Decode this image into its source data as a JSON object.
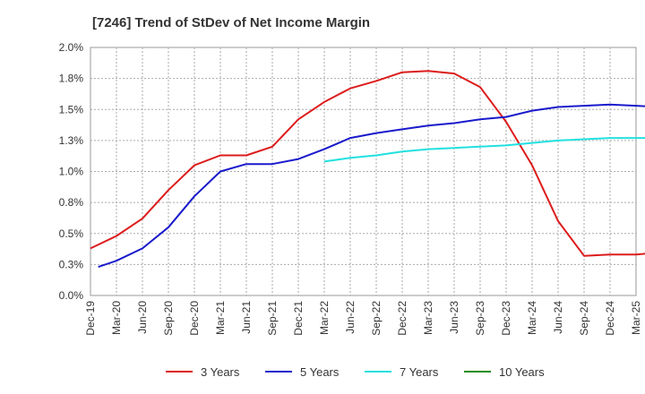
{
  "chart_data": {
    "type": "line",
    "title": "[7246]  Trend of StDev of Net Income Margin",
    "xlabel": "",
    "ylabel": "",
    "ylim": [
      0,
      2.0
    ],
    "yticks": [
      "0.0%",
      "0.3%",
      "0.5%",
      "0.8%",
      "1.0%",
      "1.3%",
      "1.5%",
      "1.8%",
      "2.0%"
    ],
    "xticks": [
      "Dec-19",
      "Mar-20",
      "Jun-20",
      "Sep-20",
      "Dec-20",
      "Mar-21",
      "Jun-21",
      "Sep-21",
      "Dec-21",
      "Mar-22",
      "Jun-22",
      "Sep-22",
      "Dec-22",
      "Mar-23",
      "Jun-23",
      "Sep-23",
      "Dec-23",
      "Mar-24",
      "Jun-24",
      "Sep-24",
      "Dec-24",
      "Mar-25"
    ],
    "grid": true,
    "legend_position": "bottom",
    "series": [
      {
        "name": "3 Years",
        "color": "#dd1c1c",
        "points": [
          [
            0,
            0.38
          ],
          [
            1,
            0.48
          ],
          [
            2,
            0.62
          ],
          [
            3,
            0.85
          ],
          [
            4,
            1.05
          ],
          [
            5,
            1.13
          ],
          [
            6,
            1.13
          ],
          [
            7,
            1.2
          ],
          [
            8,
            1.42
          ],
          [
            9,
            1.56
          ],
          [
            10,
            1.67
          ],
          [
            11,
            1.73
          ],
          [
            12,
            1.8
          ],
          [
            13,
            1.81
          ],
          [
            14,
            1.79
          ],
          [
            15,
            1.68
          ],
          [
            16,
            1.4
          ],
          [
            17,
            1.05
          ],
          [
            18,
            0.6
          ],
          [
            19,
            0.32
          ],
          [
            20,
            0.33
          ],
          [
            21,
            0.33
          ],
          [
            22,
            0.35
          ]
        ]
      },
      {
        "name": "5 Years",
        "color": "#1a1acc",
        "points": [
          [
            0.3,
            0.23
          ],
          [
            1,
            0.28
          ],
          [
            2,
            0.38
          ],
          [
            3,
            0.55
          ],
          [
            4,
            0.8
          ],
          [
            5,
            1.0
          ],
          [
            6,
            1.06
          ],
          [
            7,
            1.06
          ],
          [
            8,
            1.1
          ],
          [
            9,
            1.18
          ],
          [
            10,
            1.27
          ],
          [
            11,
            1.31
          ],
          [
            12,
            1.34
          ],
          [
            13,
            1.37
          ],
          [
            14,
            1.39
          ],
          [
            15,
            1.42
          ],
          [
            16,
            1.44
          ],
          [
            17,
            1.49
          ],
          [
            18,
            1.52
          ],
          [
            19,
            1.53
          ],
          [
            20,
            1.54
          ],
          [
            21,
            1.53
          ],
          [
            22,
            1.52
          ]
        ]
      },
      {
        "name": "7 Years",
        "color": "#22e0e0",
        "points": [
          [
            9,
            1.08
          ],
          [
            10,
            1.11
          ],
          [
            11,
            1.13
          ],
          [
            12,
            1.16
          ],
          [
            13,
            1.18
          ],
          [
            14,
            1.19
          ],
          [
            15,
            1.2
          ],
          [
            16,
            1.21
          ],
          [
            17,
            1.23
          ],
          [
            18,
            1.25
          ],
          [
            19,
            1.26
          ],
          [
            20,
            1.27
          ],
          [
            21,
            1.27
          ],
          [
            22,
            1.27
          ]
        ]
      },
      {
        "name": "10 Years",
        "color": "#1c8c1c",
        "points": []
      }
    ]
  }
}
